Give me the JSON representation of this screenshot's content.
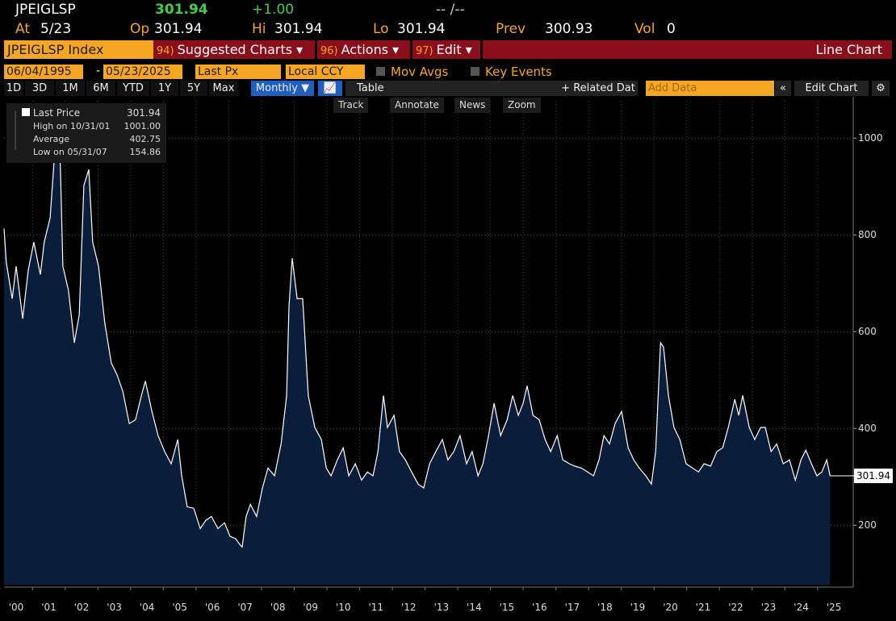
{
  "quote": {
    "ticker": "JPEIGLSP",
    "last": "301.94",
    "change": "+1.00",
    "bidask": "-- /--",
    "at_label": "At",
    "at_value": "5/23",
    "op_label": "Op",
    "op_value": "301.94",
    "hi_label": "Hi",
    "hi_value": "301.94",
    "lo_label": "Lo",
    "lo_value": "301.94",
    "prev_label": "Prev",
    "prev_value": "300.93",
    "vol_label": "Vol",
    "vol_value": "0"
  },
  "menu": {
    "security": "JPEIGLSP Index",
    "items": [
      {
        "num": "94)",
        "label": "Suggested Charts ▾"
      },
      {
        "num": "96)",
        "label": "Actions ▾"
      },
      {
        "num": "97)",
        "label": "Edit ▾"
      }
    ],
    "chart_kind": "Line Chart"
  },
  "toolbar": {
    "start_date": "06/04/1995",
    "dash": "-",
    "end_date": "05/23/2025",
    "field": "Last Px",
    "currency": "Local CCY",
    "mov_avgs": "Mov Avgs",
    "key_events": "Key Events",
    "ranges": [
      "1D",
      "3D",
      "1M",
      "6M",
      "YTD",
      "1Y",
      "5Y",
      "Max"
    ],
    "period": "Monthly ▼",
    "table": "Table",
    "related": "+ Related Dat",
    "add_data": "Add Data",
    "edit_chart": "Edit Chart",
    "tools": [
      "Track",
      "Annotate",
      "News",
      "Zoom"
    ]
  },
  "chart_data": {
    "type": "area",
    "legend": [
      {
        "label": "Last Price",
        "value": "301.94"
      },
      {
        "label": "High on 10/31/01",
        "value": "1001.00"
      },
      {
        "label": "Average",
        "value": "402.75"
      },
      {
        "label": "Low on 05/31/07",
        "value": "154.86"
      }
    ],
    "last_value_label": "301.94",
    "line_color": "#ffffff",
    "fill_color": "#0a1d3a",
    "x": [
      2000.13,
      2000.2,
      2000.38,
      2000.5,
      2000.7,
      2000.87,
      2001.04,
      2001.24,
      2001.36,
      2001.54,
      2001.66,
      2001.73,
      2001.83,
      2001.93,
      2002.1,
      2002.28,
      2002.43,
      2002.57,
      2002.72,
      2002.84,
      2003.02,
      2003.21,
      2003.41,
      2003.59,
      2003.76,
      2003.96,
      2004.15,
      2004.33,
      2004.45,
      2004.65,
      2004.84,
      2005.04,
      2005.24,
      2005.44,
      2005.56,
      2005.73,
      2005.93,
      2006.13,
      2006.3,
      2006.47,
      2006.67,
      2006.87,
      2007.04,
      2007.21,
      2007.36,
      2007.41,
      2007.53,
      2007.66,
      2007.85,
      2008.03,
      2008.2,
      2008.4,
      2008.6,
      2008.77,
      2008.84,
      2008.94,
      2009.09,
      2009.26,
      2009.43,
      2009.63,
      2009.83,
      2009.98,
      2010.13,
      2010.32,
      2010.5,
      2010.67,
      2010.87,
      2011.06,
      2011.24,
      2011.41,
      2011.56,
      2011.73,
      2011.85,
      2012.05,
      2012.22,
      2012.4,
      2012.59,
      2012.79,
      2012.96,
      2013.14,
      2013.33,
      2013.53,
      2013.7,
      2013.88,
      2014.07,
      2014.27,
      2014.44,
      2014.62,
      2014.77,
      2014.94,
      2015.11,
      2015.31,
      2015.51,
      2015.68,
      2015.85,
      2016.0,
      2016.12,
      2016.3,
      2016.49,
      2016.67,
      2016.84,
      2017.04,
      2017.21,
      2017.41,
      2017.58,
      2017.78,
      2017.97,
      2018.15,
      2018.32,
      2018.47,
      2018.64,
      2018.81,
      2019.01,
      2019.21,
      2019.38,
      2019.55,
      2019.75,
      2019.92,
      2020.05,
      2020.2,
      2020.29,
      2020.44,
      2020.61,
      2020.79,
      2020.98,
      2021.18,
      2021.36,
      2021.53,
      2021.73,
      2021.92,
      2022.1,
      2022.27,
      2022.47,
      2022.59,
      2022.71,
      2022.91,
      2023.08,
      2023.26,
      2023.4,
      2023.58,
      2023.75,
      2023.95,
      2024.14,
      2024.32,
      2024.49,
      2024.64,
      2024.81,
      2024.98,
      2025.13,
      2025.28,
      2025.38
    ],
    "values": [
      813,
      743,
      668,
      735,
      627,
      727,
      785,
      718,
      785,
      835,
      952,
      968,
      1001,
      735,
      685,
      577,
      635,
      902,
      935,
      785,
      735,
      618,
      535,
      510,
      477,
      410,
      418,
      468,
      498,
      435,
      385,
      352,
      327,
      377,
      302,
      238,
      235,
      193,
      210,
      218,
      193,
      205,
      177,
      172,
      158,
      155,
      218,
      243,
      218,
      277,
      318,
      302,
      368,
      468,
      652,
      752,
      668,
      668,
      468,
      402,
      377,
      318,
      302,
      335,
      360,
      302,
      327,
      293,
      310,
      302,
      352,
      468,
      402,
      427,
      352,
      335,
      310,
      285,
      277,
      327,
      352,
      377,
      335,
      352,
      385,
      327,
      352,
      302,
      327,
      385,
      452,
      385,
      418,
      468,
      427,
      452,
      488,
      427,
      418,
      377,
      352,
      385,
      335,
      327,
      322,
      318,
      310,
      302,
      335,
      385,
      368,
      410,
      435,
      360,
      335,
      318,
      302,
      285,
      352,
      577,
      568,
      468,
      402,
      377,
      327,
      318,
      310,
      327,
      322,
      352,
      360,
      402,
      460,
      427,
      468,
      402,
      377,
      402,
      402,
      352,
      368,
      327,
      335,
      293,
      335,
      355,
      327,
      302,
      310,
      335,
      301.94
    ],
    "xlim": [
      2000.13,
      2026.04
    ],
    "xticks": [
      {
        "value": 2000,
        "label": "'00"
      },
      {
        "value": 2001,
        "label": "'01"
      },
      {
        "value": 2002,
        "label": "'02"
      },
      {
        "value": 2003,
        "label": "'03"
      },
      {
        "value": 2004,
        "label": "'04"
      },
      {
        "value": 2005,
        "label": "'05"
      },
      {
        "value": 2006,
        "label": "'06"
      },
      {
        "value": 2007,
        "label": "'07"
      },
      {
        "value": 2008,
        "label": "'08"
      },
      {
        "value": 2009,
        "label": "'09"
      },
      {
        "value": 2010,
        "label": "'10"
      },
      {
        "value": 2011,
        "label": "'11"
      },
      {
        "value": 2012,
        "label": "'12"
      },
      {
        "value": 2013,
        "label": "'13"
      },
      {
        "value": 2014,
        "label": "'14"
      },
      {
        "value": 2015,
        "label": "'15"
      },
      {
        "value": 2016,
        "label": "'16"
      },
      {
        "value": 2017,
        "label": "'17"
      },
      {
        "value": 2018,
        "label": "'18"
      },
      {
        "value": 2019,
        "label": "'19"
      },
      {
        "value": 2020,
        "label": "'20"
      },
      {
        "value": 2021,
        "label": "'21"
      },
      {
        "value": 2022,
        "label": "'22"
      },
      {
        "value": 2023,
        "label": "'23"
      },
      {
        "value": 2024,
        "label": "'24"
      },
      {
        "value": 2025,
        "label": "'25"
      }
    ],
    "ylim": [
      77,
      1077
    ],
    "yticks": [
      200,
      400,
      600,
      800,
      1000
    ],
    "grid": true
  }
}
